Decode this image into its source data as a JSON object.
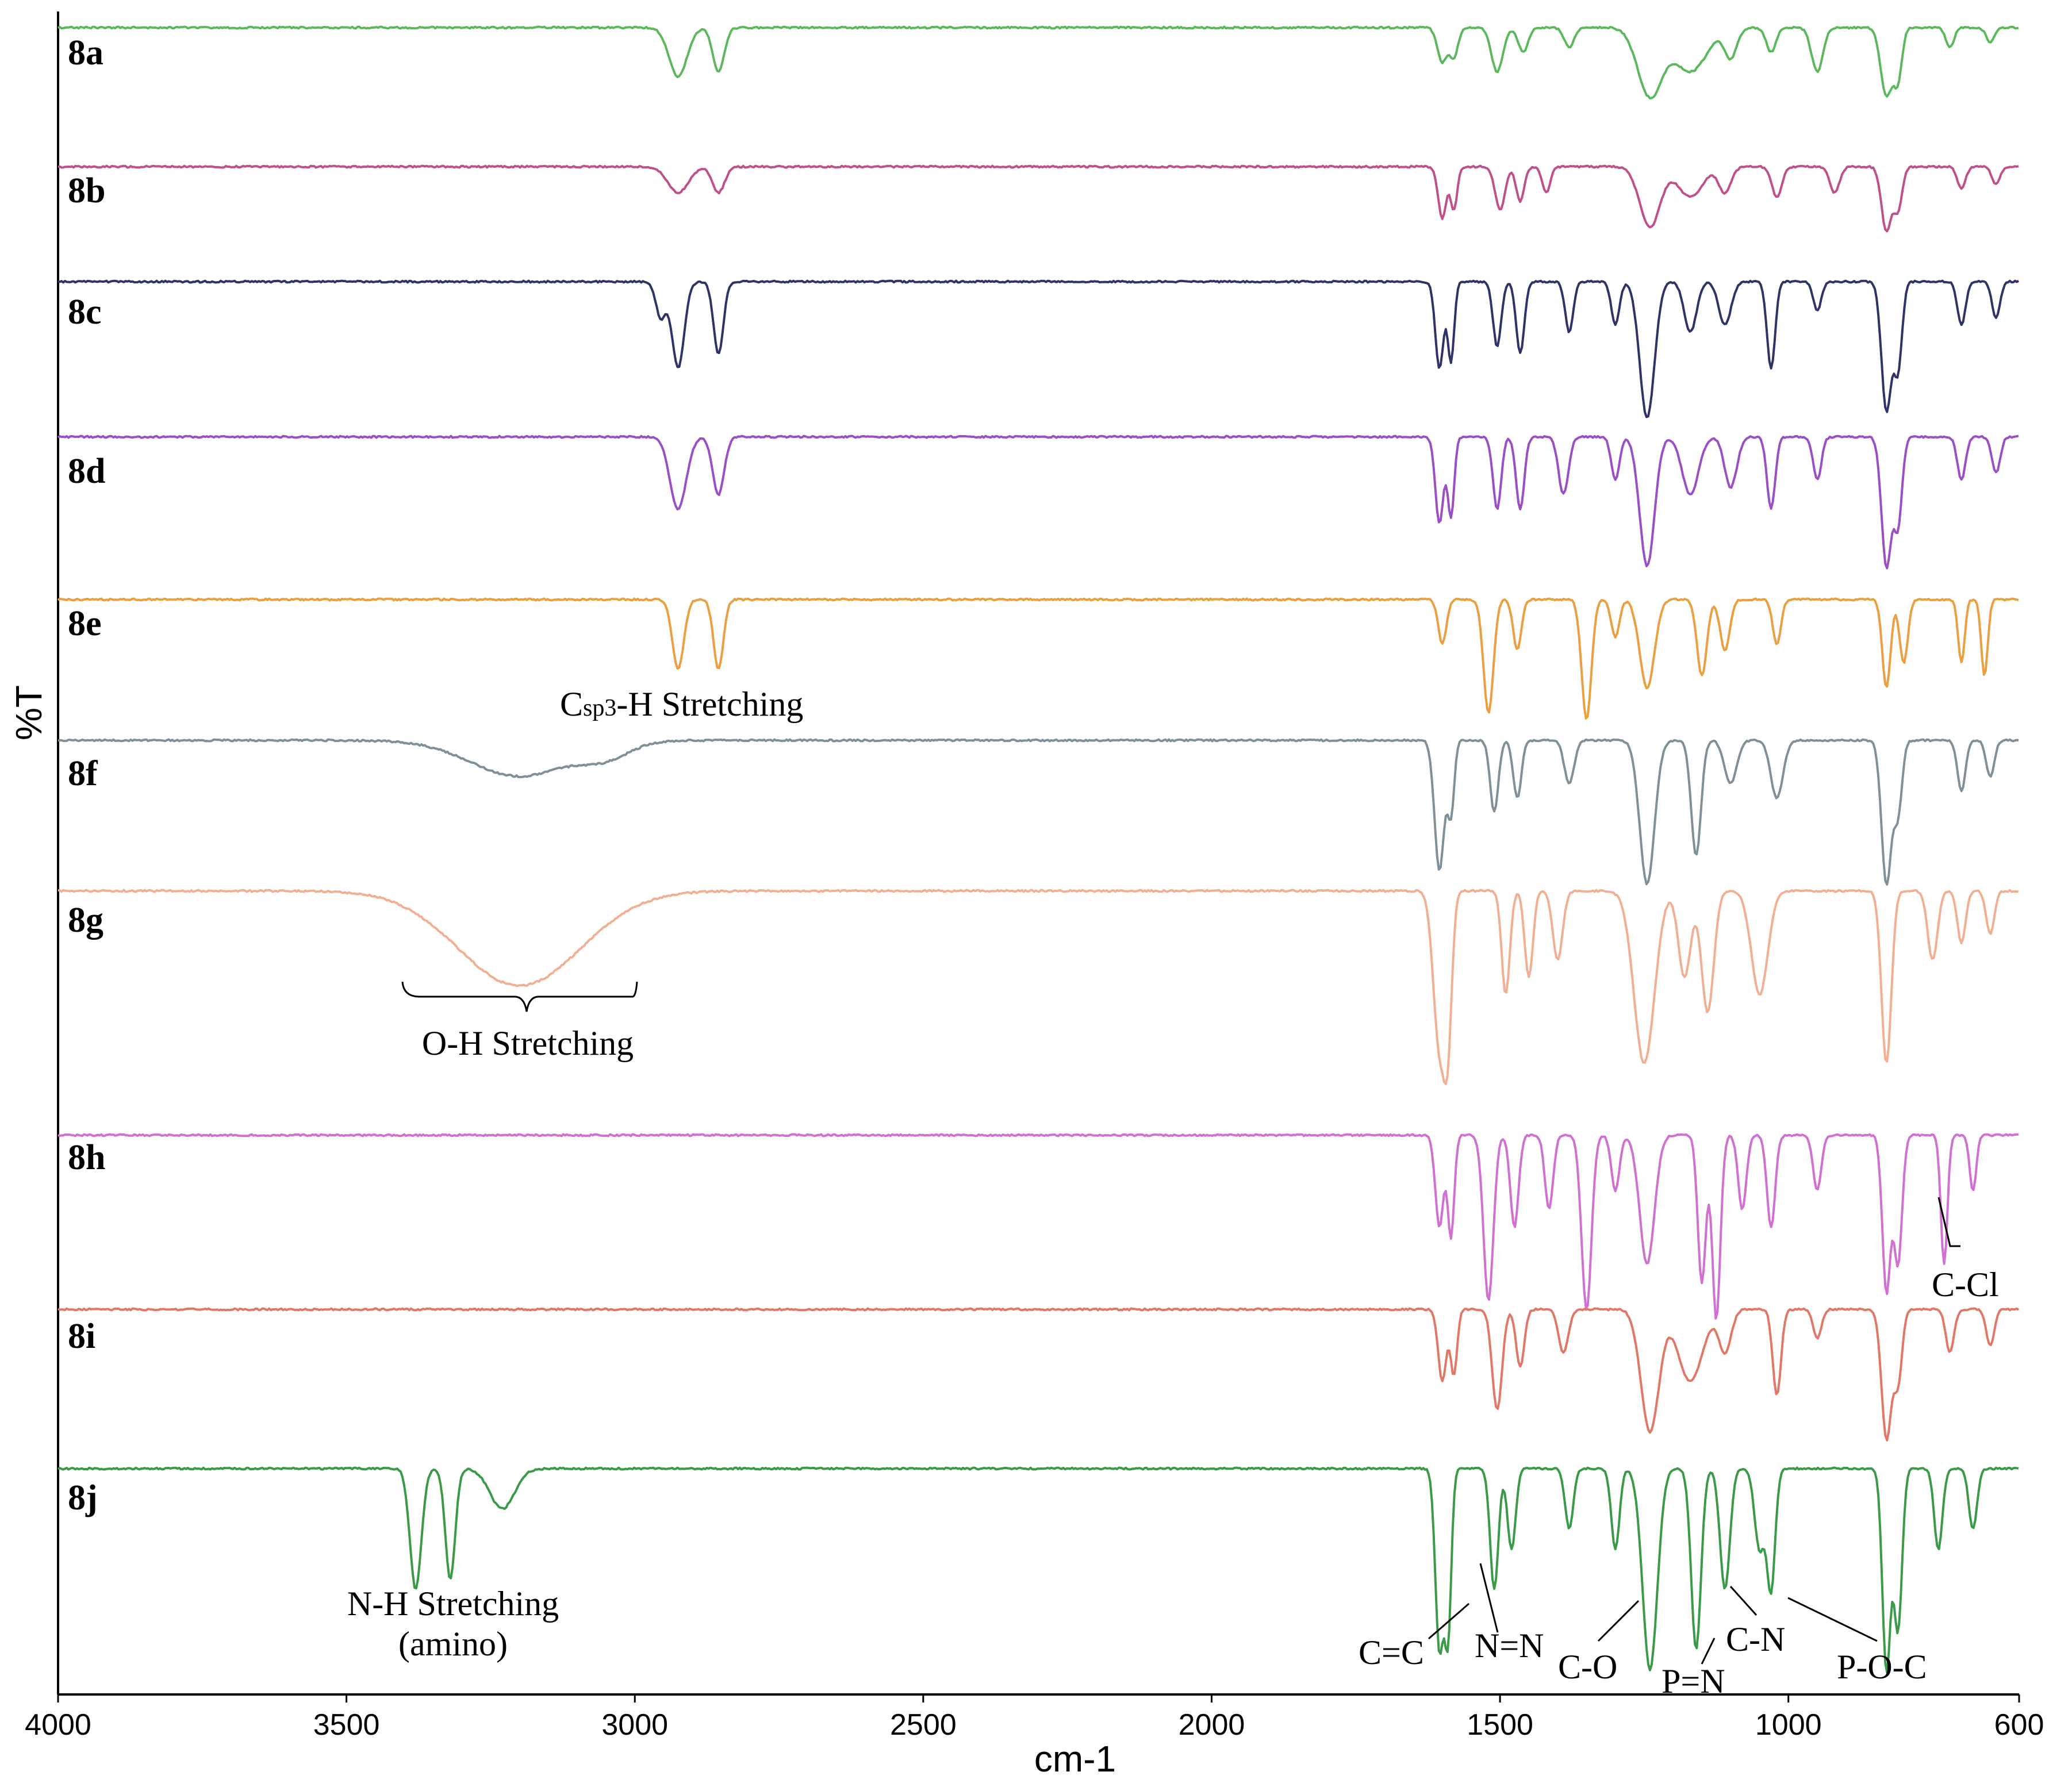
{
  "chart_data": {
    "type": "line",
    "title": "",
    "xlabel": "cm-1",
    "ylabel": "%T",
    "xlim": [
      4000,
      600
    ],
    "x_reversed": true,
    "x_ticks": [
      4000,
      3500,
      3000,
      2500,
      2000,
      1500,
      1000,
      600
    ],
    "x_tick_labels": [
      "4000",
      "3500",
      "3000",
      "2500",
      "2000",
      "1500",
      "1000",
      "600"
    ],
    "grid": false,
    "series": [
      {
        "name": "8a",
        "color": "#5cb85c",
        "baseline_row": 0.0,
        "bands": [
          [
            2925,
            0.5,
            22
          ],
          [
            2855,
            0.45,
            14
          ],
          [
            1600,
            0.35,
            12
          ],
          [
            1580,
            0.3,
            10
          ],
          [
            1505,
            0.45,
            14
          ],
          [
            1460,
            0.25,
            12
          ],
          [
            1380,
            0.2,
            12
          ],
          [
            1240,
            0.7,
            30
          ],
          [
            1170,
            0.45,
            40
          ],
          [
            1100,
            0.3,
            15
          ],
          [
            1030,
            0.25,
            12
          ],
          [
            950,
            0.45,
            14
          ],
          [
            830,
            0.7,
            14
          ],
          [
            810,
            0.5,
            10
          ],
          [
            720,
            0.2,
            10
          ],
          [
            650,
            0.15,
            10
          ]
        ]
      },
      {
        "name": "8b",
        "color": "#c0508c",
        "baseline_row": 1.0,
        "bands": [
          [
            2925,
            0.3,
            25
          ],
          [
            2855,
            0.3,
            15
          ],
          [
            1600,
            0.6,
            10
          ],
          [
            1580,
            0.5,
            8
          ],
          [
            1500,
            0.5,
            12
          ],
          [
            1465,
            0.4,
            10
          ],
          [
            1420,
            0.3,
            10
          ],
          [
            1240,
            0.7,
            25
          ],
          [
            1170,
            0.35,
            30
          ],
          [
            1110,
            0.3,
            15
          ],
          [
            1020,
            0.35,
            12
          ],
          [
            920,
            0.3,
            12
          ],
          [
            830,
            0.75,
            12
          ],
          [
            810,
            0.5,
            10
          ],
          [
            700,
            0.25,
            10
          ],
          [
            640,
            0.2,
            10
          ]
        ]
      },
      {
        "name": "8c",
        "color": "#2e3466",
        "baseline_row": 2.0,
        "bands": [
          [
            2955,
            0.25,
            12
          ],
          [
            2925,
            0.6,
            15
          ],
          [
            2855,
            0.5,
            12
          ],
          [
            1605,
            0.6,
            10
          ],
          [
            1585,
            0.55,
            8
          ],
          [
            1505,
            0.45,
            10
          ],
          [
            1465,
            0.5,
            10
          ],
          [
            1380,
            0.35,
            10
          ],
          [
            1300,
            0.3,
            10
          ],
          [
            1245,
            0.95,
            18
          ],
          [
            1170,
            0.35,
            15
          ],
          [
            1110,
            0.3,
            15
          ],
          [
            1030,
            0.6,
            10
          ],
          [
            950,
            0.2,
            10
          ],
          [
            830,
            0.9,
            12
          ],
          [
            810,
            0.6,
            10
          ],
          [
            700,
            0.3,
            10
          ],
          [
            640,
            0.25,
            10
          ]
        ]
      },
      {
        "name": "8d",
        "color": "#9b4fc4",
        "baseline_row": 3.0,
        "bands": [
          [
            2925,
            0.5,
            20
          ],
          [
            2855,
            0.4,
            14
          ],
          [
            1605,
            0.6,
            10
          ],
          [
            1585,
            0.55,
            8
          ],
          [
            1505,
            0.5,
            10
          ],
          [
            1465,
            0.5,
            10
          ],
          [
            1390,
            0.4,
            12
          ],
          [
            1300,
            0.3,
            10
          ],
          [
            1245,
            0.9,
            18
          ],
          [
            1170,
            0.4,
            20
          ],
          [
            1100,
            0.35,
            15
          ],
          [
            1030,
            0.5,
            10
          ],
          [
            950,
            0.3,
            10
          ],
          [
            830,
            0.9,
            12
          ],
          [
            810,
            0.6,
            10
          ],
          [
            700,
            0.3,
            10
          ],
          [
            640,
            0.25,
            10
          ]
        ]
      },
      {
        "name": "8e",
        "color": "#e8a040",
        "baseline_row": 4.0,
        "bands": [
          [
            2925,
            0.55,
            14
          ],
          [
            2855,
            0.55,
            12
          ],
          [
            1600,
            0.35,
            10
          ],
          [
            1520,
            0.9,
            12
          ],
          [
            1470,
            0.4,
            10
          ],
          [
            1350,
            0.95,
            12
          ],
          [
            1300,
            0.3,
            10
          ],
          [
            1245,
            0.7,
            18
          ],
          [
            1150,
            0.6,
            12
          ],
          [
            1110,
            0.4,
            12
          ],
          [
            1020,
            0.35,
            10
          ],
          [
            830,
            0.7,
            10
          ],
          [
            800,
            0.5,
            10
          ],
          [
            700,
            0.5,
            8
          ],
          [
            660,
            0.6,
            8
          ]
        ]
      },
      {
        "name": "8f",
        "color": "#7f9099",
        "baseline_row": 5.0,
        "bands": [
          [
            3200,
            0.25,
            120
          ],
          [
            3050,
            0.1,
            60
          ],
          [
            1605,
            0.9,
            12
          ],
          [
            1585,
            0.5,
            8
          ],
          [
            1510,
            0.5,
            10
          ],
          [
            1470,
            0.4,
            10
          ],
          [
            1380,
            0.3,
            12
          ],
          [
            1245,
            1.0,
            18
          ],
          [
            1160,
            0.8,
            12
          ],
          [
            1100,
            0.3,
            15
          ],
          [
            1020,
            0.4,
            15
          ],
          [
            830,
            1.0,
            12
          ],
          [
            810,
            0.5,
            10
          ],
          [
            700,
            0.35,
            10
          ],
          [
            650,
            0.25,
            10
          ]
        ]
      },
      {
        "name": "8g",
        "color": "#f0b094",
        "baseline_row": 6.0,
        "bands": [
          [
            3200,
            0.55,
            150
          ],
          [
            1605,
            0.9,
            15
          ],
          [
            1590,
            0.7,
            10
          ],
          [
            1490,
            0.6,
            10
          ],
          [
            1450,
            0.5,
            10
          ],
          [
            1400,
            0.4,
            12
          ],
          [
            1250,
            1.0,
            25
          ],
          [
            1180,
            0.5,
            15
          ],
          [
            1140,
            0.7,
            15
          ],
          [
            1050,
            0.6,
            20
          ],
          [
            830,
            1.0,
            12
          ],
          [
            750,
            0.4,
            12
          ],
          [
            700,
            0.3,
            10
          ],
          [
            650,
            0.25,
            10
          ]
        ]
      },
      {
        "name": "8h",
        "color": "#d070d0",
        "baseline_row": 7.0,
        "bands": [
          [
            1605,
            0.5,
            10
          ],
          [
            1585,
            0.55,
            8
          ],
          [
            1520,
            0.9,
            12
          ],
          [
            1475,
            0.5,
            10
          ],
          [
            1415,
            0.4,
            10
          ],
          [
            1350,
            0.95,
            12
          ],
          [
            1300,
            0.3,
            10
          ],
          [
            1245,
            0.7,
            18
          ],
          [
            1150,
            0.8,
            10
          ],
          [
            1125,
            1.0,
            10
          ],
          [
            1080,
            0.4,
            10
          ],
          [
            1030,
            0.5,
            10
          ],
          [
            950,
            0.3,
            10
          ],
          [
            830,
            0.85,
            10
          ],
          [
            810,
            0.7,
            10
          ],
          [
            730,
            0.7,
            8
          ],
          [
            680,
            0.3,
            8
          ]
        ]
      },
      {
        "name": "8i",
        "color": "#e07868",
        "baseline_row": 8.0,
        "bands": [
          [
            1600,
            0.5,
            10
          ],
          [
            1580,
            0.45,
            8
          ],
          [
            1505,
            0.7,
            12
          ],
          [
            1465,
            0.4,
            10
          ],
          [
            1390,
            0.3,
            12
          ],
          [
            1240,
            0.85,
            22
          ],
          [
            1170,
            0.5,
            30
          ],
          [
            1110,
            0.3,
            15
          ],
          [
            1020,
            0.6,
            10
          ],
          [
            950,
            0.2,
            10
          ],
          [
            830,
            0.9,
            12
          ],
          [
            810,
            0.5,
            10
          ],
          [
            720,
            0.3,
            10
          ],
          [
            650,
            0.25,
            10
          ]
        ]
      },
      {
        "name": "8j",
        "color": "#3a9a48",
        "baseline_row": 9.0,
        "bands": [
          [
            3380,
            0.6,
            14
          ],
          [
            3320,
            0.55,
            12
          ],
          [
            3230,
            0.2,
            30
          ],
          [
            1605,
            0.9,
            10
          ],
          [
            1590,
            0.8,
            8
          ],
          [
            1510,
            0.6,
            10
          ],
          [
            1480,
            0.4,
            10
          ],
          [
            1380,
            0.3,
            10
          ],
          [
            1300,
            0.4,
            10
          ],
          [
            1240,
            1.0,
            18
          ],
          [
            1160,
            0.9,
            12
          ],
          [
            1110,
            0.6,
            12
          ],
          [
            1050,
            0.4,
            12
          ],
          [
            1030,
            0.6,
            10
          ],
          [
            830,
            1.0,
            10
          ],
          [
            810,
            0.8,
            10
          ],
          [
            740,
            0.4,
            10
          ],
          [
            680,
            0.3,
            10
          ]
        ]
      }
    ],
    "annotations": [
      {
        "label_parts": [
          "C",
          "sp3",
          "-H Stretching"
        ],
        "x": 2720
      },
      {
        "label": "O-H Stretching",
        "x": 3200,
        "range": [
          3410,
          3000
        ]
      },
      {
        "label": "N-H Stretching",
        "label2": "(amino)",
        "x": 3350
      },
      {
        "label": "C-Cl",
        "x": 730
      },
      {
        "label": "C=C",
        "x": 1600
      },
      {
        "label": "N=N",
        "x": 1510
      },
      {
        "label": "C-O",
        "x": 1300
      },
      {
        "label": "P=N",
        "x": 1160
      },
      {
        "label": "C-N",
        "x": 1100
      },
      {
        "label": "P-O-C",
        "x": 830
      }
    ]
  }
}
